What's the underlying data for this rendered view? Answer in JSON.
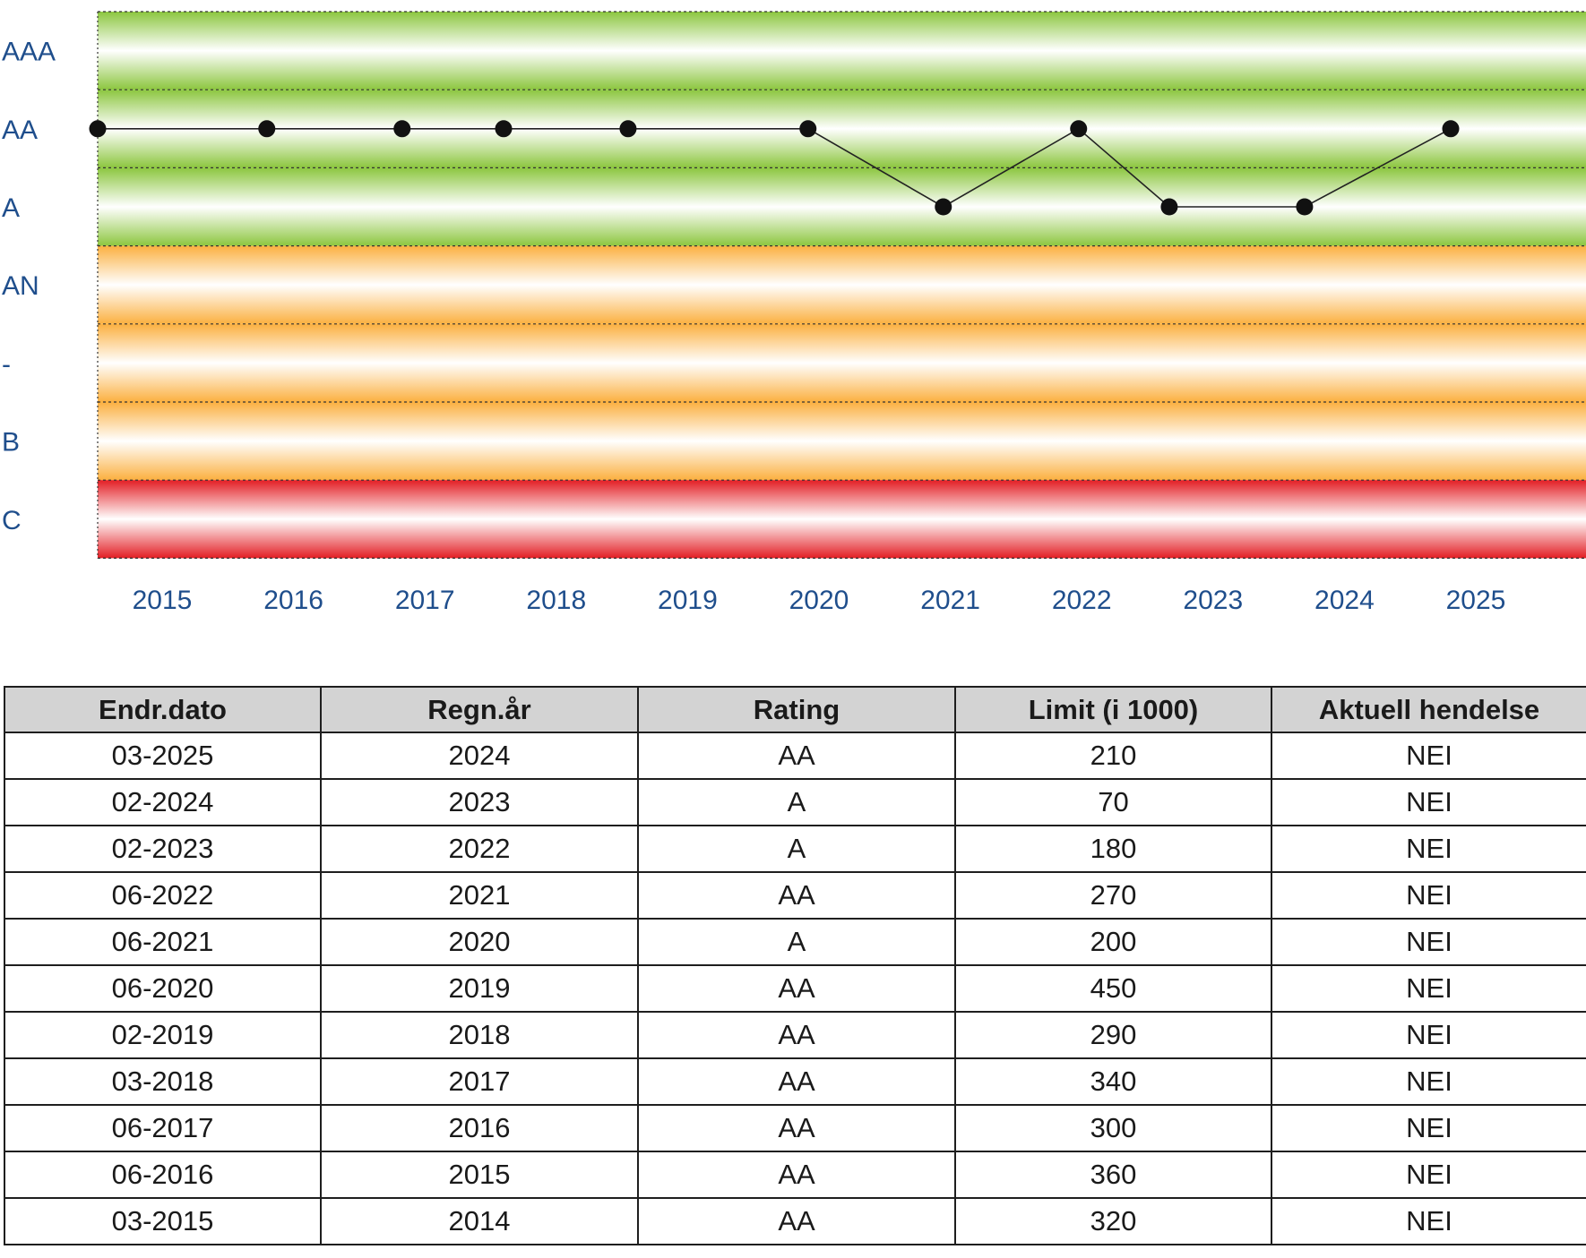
{
  "chart_data": {
    "type": "line",
    "y_categories": [
      "AAA",
      "AA",
      "A",
      "AN",
      "-",
      "B",
      "C"
    ],
    "x_ticks": [
      "2015",
      "2016",
      "2017",
      "2018",
      "2019",
      "2020",
      "2021",
      "2022",
      "2023",
      "2024",
      "2025"
    ],
    "xlim": [
      2014.75,
      2025.75
    ],
    "points": [
      {
        "x": 2014.75,
        "y": "AA"
      },
      {
        "x": 2016.0,
        "y": "AA"
      },
      {
        "x": 2017.0,
        "y": "AA"
      },
      {
        "x": 2017.75,
        "y": "AA"
      },
      {
        "x": 2018.67,
        "y": "AA"
      },
      {
        "x": 2020.0,
        "y": "AA"
      },
      {
        "x": 2021.0,
        "y": "A"
      },
      {
        "x": 2022.0,
        "y": "AA"
      },
      {
        "x": 2022.67,
        "y": "A"
      },
      {
        "x": 2023.67,
        "y": "A"
      },
      {
        "x": 2024.75,
        "y": "AA"
      }
    ],
    "bands": [
      {
        "from": "AAA",
        "to": "A",
        "color": "#8cc63f"
      },
      {
        "from": "AN",
        "to": "B",
        "color": "#fbb040"
      },
      {
        "from": "C",
        "to": "C",
        "color": "#e31e24"
      }
    ],
    "grid": true
  },
  "table": {
    "headers": [
      "Endr.dato",
      "Regn.år",
      "Rating",
      "Limit (i 1000)",
      "Aktuell hendelse"
    ],
    "rows": [
      [
        "03-2025",
        "2024",
        "AA",
        "210",
        "NEI"
      ],
      [
        "02-2024",
        "2023",
        "A",
        "70",
        "NEI"
      ],
      [
        "02-2023",
        "2022",
        "A",
        "180",
        "NEI"
      ],
      [
        "06-2022",
        "2021",
        "AA",
        "270",
        "NEI"
      ],
      [
        "06-2021",
        "2020",
        "A",
        "200",
        "NEI"
      ],
      [
        "06-2020",
        "2019",
        "AA",
        "450",
        "NEI"
      ],
      [
        "02-2019",
        "2018",
        "AA",
        "290",
        "NEI"
      ],
      [
        "03-2018",
        "2017",
        "AA",
        "340",
        "NEI"
      ],
      [
        "06-2017",
        "2016",
        "AA",
        "300",
        "NEI"
      ],
      [
        "06-2016",
        "2015",
        "AA",
        "360",
        "NEI"
      ],
      [
        "03-2015",
        "2014",
        "AA",
        "320",
        "NEI"
      ]
    ]
  }
}
